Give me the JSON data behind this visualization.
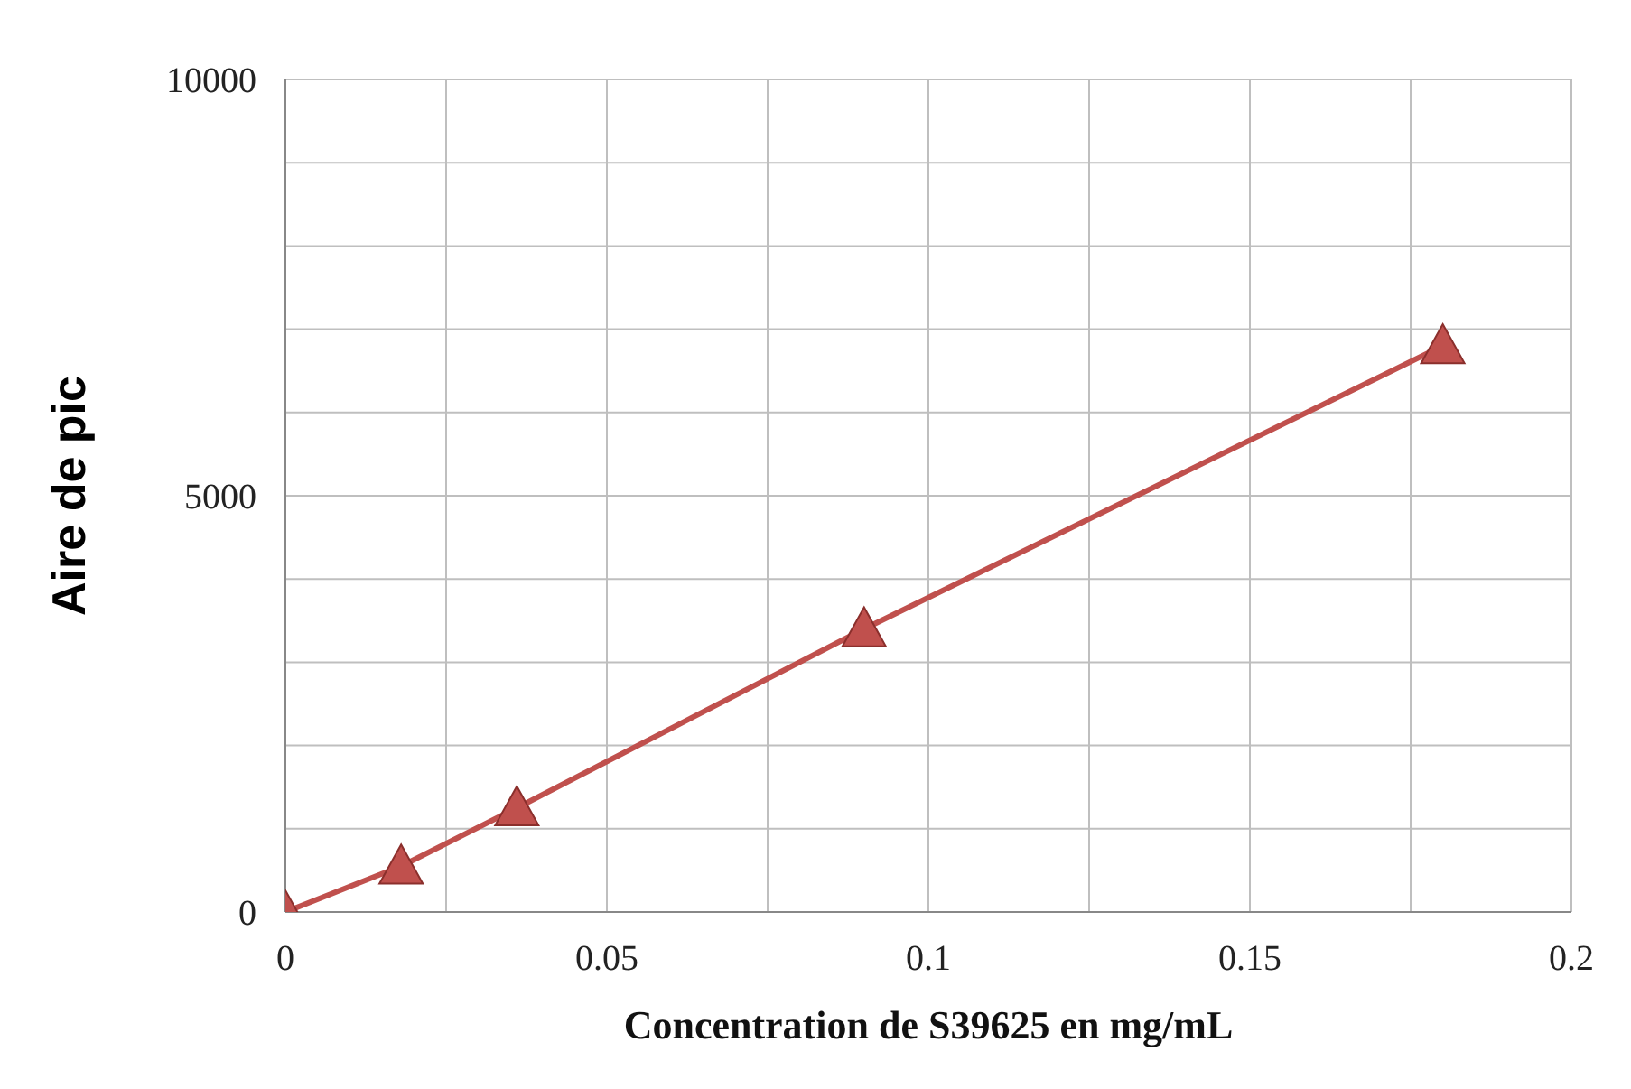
{
  "chart_data": {
    "type": "line",
    "xlabel": "Concentration de S39625 en mg/mL",
    "ylabel": "Aire de pic",
    "x": [
      0,
      0.018,
      0.036,
      0.09,
      0.18
    ],
    "series": [
      {
        "color": "#c0504d",
        "values": [
          0,
          550,
          1250,
          3400,
          6800
        ]
      }
    ],
    "xlim": [
      0,
      0.2
    ],
    "xticks": [
      0,
      {
        "value": 0.025,
        "label": null
      },
      0.05,
      {
        "value": 0.075,
        "label": null
      },
      0.1,
      {
        "value": 0.125,
        "label": null
      },
      0.15,
      {
        "value": 0.175,
        "label": null
      },
      0.2
    ],
    "ylim": [
      0,
      10000
    ],
    "yticks": [
      0,
      {
        "value": 1000,
        "label": null
      },
      {
        "value": 2000,
        "label": null
      },
      {
        "value": 3000,
        "label": null
      },
      {
        "value": 4000,
        "label": null
      },
      5000,
      {
        "value": 6000,
        "label": null
      },
      {
        "value": 7000,
        "label": null
      },
      {
        "value": 8000,
        "label": null
      },
      {
        "value": 9000,
        "label": null
      },
      10000
    ],
    "grid": true,
    "marker": "triangle",
    "line_style": "solid",
    "legend": false
  }
}
